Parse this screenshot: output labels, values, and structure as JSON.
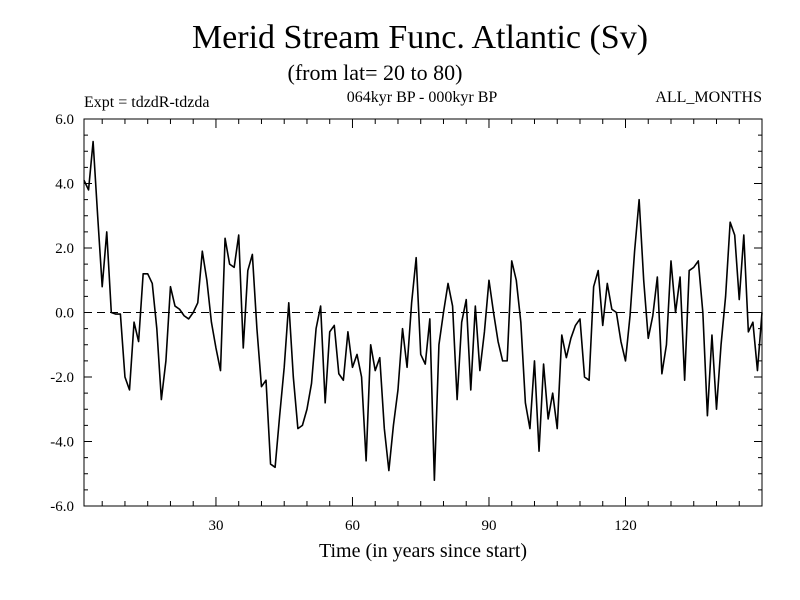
{
  "chart_data": {
    "type": "line",
    "title": "Merid Stream Func. Atlantic (Sv)",
    "subtitle": "(from lat= 20 to 80)",
    "left_label": "Expt = tdzdR-tdzda",
    "center_label": "064kyr BP - 000kyr BP",
    "right_label": "ALL_MONTHS",
    "xlabel": "Time (in years since start)",
    "ylabel": "",
    "xlim": [
      1,
      150
    ],
    "ylim": [
      -6,
      6
    ],
    "x_ticks": [
      30,
      60,
      90,
      120
    ],
    "x_tick_labels": [
      "30",
      "60",
      "90",
      "120"
    ],
    "y_ticks": [
      -6,
      -4,
      -2,
      0,
      2,
      4,
      6
    ],
    "y_tick_labels": [
      "-6.0",
      "-4.0",
      "-2.0",
      "0.0",
      "2.0",
      "4.0",
      "6.0"
    ],
    "reference_line": 0,
    "x": [
      1,
      2,
      3,
      4,
      5,
      6,
      7,
      8,
      9,
      10,
      11,
      12,
      13,
      14,
      15,
      16,
      17,
      18,
      19,
      20,
      21,
      22,
      23,
      24,
      25,
      26,
      27,
      28,
      29,
      30,
      31,
      32,
      33,
      34,
      35,
      36,
      37,
      38,
      39,
      40,
      41,
      42,
      43,
      44,
      45,
      46,
      47,
      48,
      49,
      50,
      51,
      52,
      53,
      54,
      55,
      56,
      57,
      58,
      59,
      60,
      61,
      62,
      63,
      64,
      65,
      66,
      67,
      68,
      69,
      70,
      71,
      72,
      73,
      74,
      75,
      76,
      77,
      78,
      79,
      80,
      81,
      82,
      83,
      84,
      85,
      86,
      87,
      88,
      89,
      90,
      91,
      92,
      93,
      94,
      95,
      96,
      97,
      98,
      99,
      100,
      101,
      102,
      103,
      104,
      105,
      106,
      107,
      108,
      109,
      110,
      111,
      112,
      113,
      114,
      115,
      116,
      117,
      118,
      119,
      120,
      121,
      122,
      123,
      124,
      125,
      126,
      127,
      128,
      129,
      130,
      131,
      132,
      133,
      134,
      135,
      136,
      137,
      138,
      139,
      140,
      141,
      142,
      143,
      144,
      145,
      146,
      147,
      148,
      149,
      150
    ],
    "values": [
      4.1,
      3.8,
      5.3,
      3.0,
      0.8,
      2.5,
      0.0,
      -0.05,
      -0.05,
      -2.0,
      -2.4,
      -0.3,
      -0.9,
      1.2,
      1.2,
      0.9,
      -0.5,
      -2.7,
      -1.5,
      0.8,
      0.2,
      0.1,
      -0.1,
      -0.2,
      0.0,
      0.3,
      1.9,
      1.0,
      -0.3,
      -1.1,
      -1.8,
      2.3,
      1.5,
      1.4,
      2.4,
      -1.1,
      1.3,
      1.8,
      -0.5,
      -2.3,
      -2.1,
      -4.7,
      -4.8,
      -3.2,
      -1.7,
      0.3,
      -2.0,
      -3.6,
      -3.5,
      -3.0,
      -2.2,
      -0.5,
      0.2,
      -2.8,
      -0.6,
      -0.4,
      -1.9,
      -2.1,
      -0.6,
      -1.7,
      -1.3,
      -2.0,
      -4.6,
      -1.0,
      -1.8,
      -1.4,
      -3.6,
      -4.9,
      -3.5,
      -2.4,
      -0.5,
      -1.7,
      0.3,
      1.7,
      -1.3,
      -1.6,
      -0.2,
      -5.2,
      -1.0,
      0.0,
      0.9,
      0.2,
      -2.7,
      -0.3,
      0.4,
      -2.4,
      0.2,
      -1.8,
      -0.6,
      1.0,
      0.0,
      -0.9,
      -1.5,
      -1.5,
      1.6,
      1.0,
      -0.3,
      -2.8,
      -3.6,
      -1.5,
      -4.3,
      -1.6,
      -3.3,
      -2.5,
      -3.6,
      -0.7,
      -1.4,
      -0.8,
      -0.4,
      -0.2,
      -2.0,
      -2.1,
      0.8,
      1.3,
      -0.4,
      0.9,
      0.1,
      0.0,
      -0.9,
      -1.5,
      -0.1,
      1.9,
      3.5,
      1.0,
      -0.8,
      -0.1,
      1.1,
      -1.9,
      -1.0,
      1.6,
      0.0,
      1.1,
      -2.1,
      1.3,
      1.4,
      1.6,
      0.0,
      -3.2,
      -0.7,
      -3.0,
      -1.0,
      0.5,
      2.8,
      2.4,
      0.4,
      2.4,
      -0.6,
      -0.3,
      -1.8,
      0.0
    ]
  }
}
